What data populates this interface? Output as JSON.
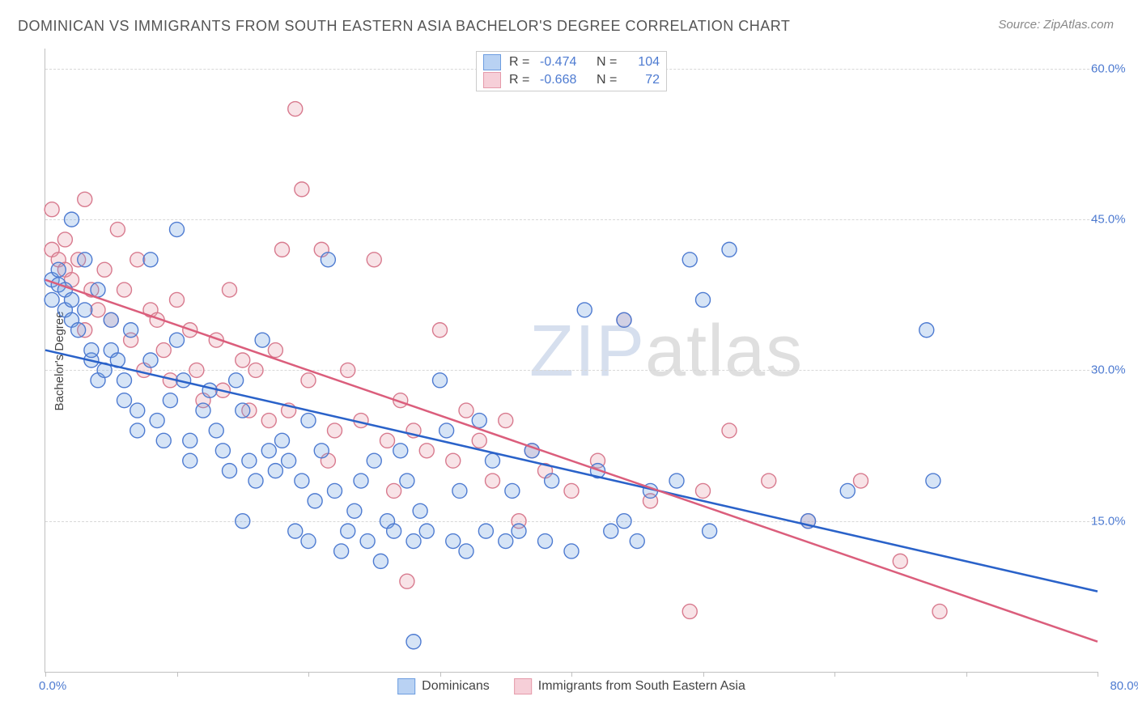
{
  "title": "DOMINICAN VS IMMIGRANTS FROM SOUTH EASTERN ASIA BACHELOR'S DEGREE CORRELATION CHART",
  "source_label": "Source:",
  "source_name": "ZipAtlas.com",
  "watermark": {
    "part1": "ZIP",
    "part2": "atlas"
  },
  "ylabel": "Bachelor's Degree",
  "chart": {
    "type": "scatter",
    "xlim": [
      0,
      80
    ],
    "ylim": [
      0,
      62
    ],
    "xtick_step": 10,
    "yticks": [
      15,
      30,
      45,
      60
    ],
    "ytick_labels": [
      "15.0%",
      "30.0%",
      "45.0%",
      "60.0%"
    ],
    "x_start_label": "0.0%",
    "x_end_label": "80.0%",
    "background_color": "#ffffff",
    "grid_color": "#d8d8d8",
    "axis_color": "#c0c0c0",
    "marker_radius": 9,
    "marker_stroke_width": 1.4,
    "marker_fill_opacity": 0.28,
    "trend_line_width": 2.5,
    "label_color": "#4e7bd1"
  },
  "series": {
    "dominicans": {
      "label": "Dominicans",
      "swatch_fill": "#b9d2f3",
      "swatch_border": "#6d9de0",
      "marker_fill": "#6d9de0",
      "marker_stroke": "#4e7bd1",
      "line_color": "#2a62c9",
      "R": "-0.474",
      "N": "104",
      "trend": {
        "x1": 0,
        "y1": 32,
        "x2": 80,
        "y2": 8
      },
      "points": [
        [
          0.5,
          39
        ],
        [
          0.5,
          37
        ],
        [
          1,
          38.5
        ],
        [
          1,
          40
        ],
        [
          1.5,
          36
        ],
        [
          1.5,
          38
        ],
        [
          2,
          45
        ],
        [
          2,
          37
        ],
        [
          2,
          35
        ],
        [
          2.5,
          34
        ],
        [
          3,
          41
        ],
        [
          3,
          36
        ],
        [
          3.5,
          31
        ],
        [
          3.5,
          32
        ],
        [
          4,
          38
        ],
        [
          4,
          29
        ],
        [
          4.5,
          30
        ],
        [
          5,
          35
        ],
        [
          5,
          32
        ],
        [
          5.5,
          31
        ],
        [
          6,
          27
        ],
        [
          6,
          29
        ],
        [
          6.5,
          34
        ],
        [
          7,
          26
        ],
        [
          7,
          24
        ],
        [
          8,
          41
        ],
        [
          8,
          31
        ],
        [
          8.5,
          25
        ],
        [
          9,
          23
        ],
        [
          9.5,
          27
        ],
        [
          10,
          44
        ],
        [
          10,
          33
        ],
        [
          10.5,
          29
        ],
        [
          11,
          23
        ],
        [
          11,
          21
        ],
        [
          12,
          26
        ],
        [
          12.5,
          28
        ],
        [
          13,
          24
        ],
        [
          13.5,
          22
        ],
        [
          14,
          20
        ],
        [
          14.5,
          29
        ],
        [
          15,
          26
        ],
        [
          15,
          15
        ],
        [
          15.5,
          21
        ],
        [
          16,
          19
        ],
        [
          16.5,
          33
        ],
        [
          17,
          22
        ],
        [
          17.5,
          20
        ],
        [
          18,
          23
        ],
        [
          18.5,
          21
        ],
        [
          19,
          14
        ],
        [
          19.5,
          19
        ],
        [
          20,
          13
        ],
        [
          20,
          25
        ],
        [
          20.5,
          17
        ],
        [
          21,
          22
        ],
        [
          21.5,
          41
        ],
        [
          22,
          18
        ],
        [
          22.5,
          12
        ],
        [
          23,
          14
        ],
        [
          23.5,
          16
        ],
        [
          24,
          19
        ],
        [
          24.5,
          13
        ],
        [
          25,
          21
        ],
        [
          25.5,
          11
        ],
        [
          26,
          15
        ],
        [
          26.5,
          14
        ],
        [
          27,
          22
        ],
        [
          27.5,
          19
        ],
        [
          28,
          13
        ],
        [
          28,
          3
        ],
        [
          28.5,
          16
        ],
        [
          29,
          14
        ],
        [
          30,
          29
        ],
        [
          30.5,
          24
        ],
        [
          31,
          13
        ],
        [
          31.5,
          18
        ],
        [
          32,
          12
        ],
        [
          33,
          25
        ],
        [
          33.5,
          14
        ],
        [
          34,
          21
        ],
        [
          35,
          13
        ],
        [
          35.5,
          18
        ],
        [
          36,
          14
        ],
        [
          37,
          22
        ],
        [
          38,
          13
        ],
        [
          38.5,
          19
        ],
        [
          40,
          12
        ],
        [
          41,
          36
        ],
        [
          42,
          20
        ],
        [
          43,
          14
        ],
        [
          44,
          35
        ],
        [
          45,
          13
        ],
        [
          46,
          18
        ],
        [
          48,
          19
        ],
        [
          49,
          41
        ],
        [
          50,
          37
        ],
        [
          50.5,
          14
        ],
        [
          52,
          42
        ],
        [
          58,
          15
        ],
        [
          61,
          18
        ],
        [
          67,
          34
        ],
        [
          67.5,
          19
        ],
        [
          44,
          15
        ]
      ]
    },
    "seasia": {
      "label": "Immigrants from South Eastern Asia",
      "swatch_fill": "#f6cfd8",
      "swatch_border": "#e59aaa",
      "marker_fill": "#e59aaa",
      "marker_stroke": "#d87a8e",
      "line_color": "#db5e7c",
      "R": "-0.668",
      "N": "72",
      "trend": {
        "x1": 0,
        "y1": 39,
        "x2": 80,
        "y2": 3
      },
      "points": [
        [
          0.5,
          42
        ],
        [
          0.5,
          46
        ],
        [
          1,
          41
        ],
        [
          1.5,
          40
        ],
        [
          1.5,
          43
        ],
        [
          2,
          39
        ],
        [
          2.5,
          41
        ],
        [
          3,
          34
        ],
        [
          3,
          47
        ],
        [
          3.5,
          38
        ],
        [
          4,
          36
        ],
        [
          4.5,
          40
        ],
        [
          5,
          35
        ],
        [
          5.5,
          44
        ],
        [
          6,
          38
        ],
        [
          6.5,
          33
        ],
        [
          7,
          41
        ],
        [
          7.5,
          30
        ],
        [
          8,
          36
        ],
        [
          8.5,
          35
        ],
        [
          9,
          32
        ],
        [
          9.5,
          29
        ],
        [
          10,
          37
        ],
        [
          11,
          34
        ],
        [
          11.5,
          30
        ],
        [
          12,
          27
        ],
        [
          13,
          33
        ],
        [
          13.5,
          28
        ],
        [
          14,
          38
        ],
        [
          15,
          31
        ],
        [
          15.5,
          26
        ],
        [
          16,
          30
        ],
        [
          17,
          25
        ],
        [
          17.5,
          32
        ],
        [
          18,
          42
        ],
        [
          18.5,
          26
        ],
        [
          19,
          56
        ],
        [
          19.5,
          48
        ],
        [
          20,
          29
        ],
        [
          21,
          42
        ],
        [
          21.5,
          21
        ],
        [
          22,
          24
        ],
        [
          23,
          30
        ],
        [
          24,
          25
        ],
        [
          25,
          41
        ],
        [
          26,
          23
        ],
        [
          26.5,
          18
        ],
        [
          27,
          27
        ],
        [
          27.5,
          9
        ],
        [
          28,
          24
        ],
        [
          29,
          22
        ],
        [
          30,
          34
        ],
        [
          31,
          21
        ],
        [
          32,
          26
        ],
        [
          33,
          23
        ],
        [
          34,
          19
        ],
        [
          35,
          25
        ],
        [
          36,
          15
        ],
        [
          37,
          22
        ],
        [
          38,
          20
        ],
        [
          40,
          18
        ],
        [
          42,
          21
        ],
        [
          44,
          35
        ],
        [
          46,
          17
        ],
        [
          49,
          6
        ],
        [
          52,
          24
        ],
        [
          55,
          19
        ],
        [
          58,
          15
        ],
        [
          62,
          19
        ],
        [
          65,
          11
        ],
        [
          68,
          6
        ],
        [
          50,
          18
        ]
      ]
    }
  },
  "top_legend": {
    "R_label": "R =",
    "N_label": "N ="
  }
}
